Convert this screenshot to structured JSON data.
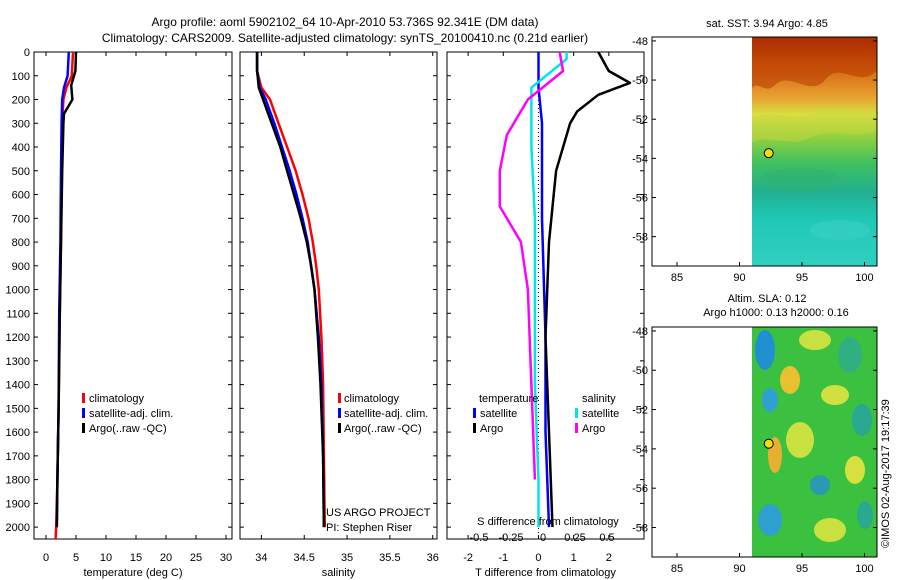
{
  "header": {
    "line1": "Argo profile: aoml 5902102_64 10-Apr-2010 53.736S 92.341E (DM data)",
    "line2": "Climatology: CARS2009. Satellite-adjusted climatology: synTS_20100410.nc (0.21d earlier)"
  },
  "credits": {
    "project": "US ARGO PROJECT",
    "pi": "PI: Stephen Riser",
    "timestamp": "©IMOS 02-Aug-2017 19:17:39"
  },
  "colors": {
    "climatology": "#ff0000",
    "satellite": "#0000ff",
    "argo": "#000000",
    "sat_salinity": "#00e5e5",
    "argo_salinity": "#ff00ff"
  },
  "chart_data": [
    {
      "type": "line",
      "id": "temperature",
      "xlabel": "temperature (deg C)",
      "xlim": [
        -2,
        31
      ],
      "ylim": [
        0,
        2050
      ],
      "xticks": [
        0,
        5,
        10,
        15,
        20,
        25,
        30
      ],
      "depth_ticks": [
        0,
        100,
        200,
        300,
        400,
        500,
        600,
        700,
        800,
        900,
        1000,
        1100,
        1200,
        1300,
        1400,
        1500,
        1600,
        1700,
        1800,
        1900,
        2000
      ],
      "legend": [
        "climatology",
        "satellite-adj. clim.",
        "Argo(..raw -QC)"
      ],
      "series": [
        {
          "name": "climatology",
          "color": "#ff0000",
          "points": [
            [
              4.5,
              0
            ],
            [
              4.3,
              100
            ],
            [
              3.4,
              150
            ],
            [
              2.9,
              200
            ],
            [
              2.7,
              300
            ],
            [
              2.6,
              500
            ],
            [
              2.5,
              800
            ],
            [
              2.3,
              1100
            ],
            [
              2.1,
              1500
            ],
            [
              1.9,
              1800
            ],
            [
              1.7,
              2000
            ],
            [
              1.6,
              2050
            ]
          ]
        },
        {
          "name": "satellite",
          "color": "#0000ff",
          "points": [
            [
              3.8,
              0
            ],
            [
              3.6,
              100
            ],
            [
              3.0,
              150
            ],
            [
              2.7,
              200
            ],
            [
              2.6,
              300
            ],
            [
              2.5,
              500
            ],
            [
              2.4,
              800
            ],
            [
              2.2,
              1100
            ],
            [
              2.1,
              1500
            ],
            [
              1.9,
              1800
            ],
            [
              1.8,
              2000
            ]
          ]
        },
        {
          "name": "argo",
          "color": "#000000",
          "points": [
            [
              5.0,
              0
            ],
            [
              4.9,
              80
            ],
            [
              4.2,
              140
            ],
            [
              4.4,
              200
            ],
            [
              3.0,
              260
            ],
            [
              2.9,
              300
            ],
            [
              2.7,
              500
            ],
            [
              2.5,
              800
            ],
            [
              2.3,
              1100
            ],
            [
              2.1,
              1500
            ],
            [
              1.9,
              1800
            ],
            [
              1.8,
              2000
            ]
          ]
        }
      ]
    },
    {
      "type": "line",
      "id": "salinity",
      "xlabel": "salinity",
      "xlim": [
        33.75,
        36.05
      ],
      "ylim": [
        0,
        2050
      ],
      "xticks": [
        34,
        34.5,
        35,
        35.5,
        36
      ],
      "legend": [
        "climatology",
        "satellite-adj. clim.",
        "Argo(..raw -QC)"
      ],
      "series": [
        {
          "name": "climatology",
          "color": "#ff0000",
          "points": [
            [
              33.95,
              0
            ],
            [
              33.95,
              80
            ],
            [
              34.0,
              150
            ],
            [
              34.1,
              200
            ],
            [
              34.2,
              300
            ],
            [
              34.3,
              400
            ],
            [
              34.4,
              500
            ],
            [
              34.48,
              600
            ],
            [
              34.55,
              700
            ],
            [
              34.6,
              800
            ],
            [
              34.64,
              900
            ],
            [
              34.67,
              1000
            ],
            [
              34.7,
              1200
            ],
            [
              34.72,
              1400
            ],
            [
              34.73,
              1700
            ],
            [
              34.74,
              2000
            ]
          ]
        },
        {
          "name": "satellite",
          "color": "#0000ff",
          "points": [
            [
              33.95,
              0
            ],
            [
              33.95,
              80
            ],
            [
              33.98,
              150
            ],
            [
              34.05,
              200
            ],
            [
              34.15,
              300
            ],
            [
              34.24,
              400
            ],
            [
              34.33,
              500
            ],
            [
              34.41,
              600
            ],
            [
              34.48,
              700
            ],
            [
              34.54,
              800
            ],
            [
              34.58,
              900
            ],
            [
              34.62,
              1000
            ],
            [
              34.67,
              1200
            ],
            [
              34.7,
              1400
            ],
            [
              34.72,
              1700
            ],
            [
              34.73,
              2000
            ]
          ]
        },
        {
          "name": "argo",
          "color": "#000000",
          "points": [
            [
              33.95,
              0
            ],
            [
              33.95,
              80
            ],
            [
              33.97,
              150
            ],
            [
              34.07,
              250
            ],
            [
              34.12,
              300
            ],
            [
              34.22,
              400
            ],
            [
              34.3,
              500
            ],
            [
              34.38,
              600
            ],
            [
              34.46,
              700
            ],
            [
              34.53,
              800
            ],
            [
              34.58,
              900
            ],
            [
              34.62,
              1000
            ],
            [
              34.66,
              1200
            ],
            [
              34.69,
              1400
            ],
            [
              34.72,
              1700
            ],
            [
              34.73,
              2000
            ]
          ]
        }
      ]
    },
    {
      "type": "line",
      "id": "difference",
      "xlabel": "T difference from climatology",
      "xlabel_top": "S difference from climatology",
      "xlim": [
        -2.6,
        3.0
      ],
      "ylim": [
        0,
        2050
      ],
      "xticks": [
        -2,
        -1,
        0,
        1,
        2
      ],
      "xticks_salinity": [
        -0.5,
        -0.25,
        0,
        0.25,
        0.5
      ],
      "legend_titles": [
        "temperature",
        "salinity"
      ],
      "legend": [
        "satellite",
        "Argo",
        "satellite",
        "Argo"
      ],
      "series": [
        {
          "name": "T satellite",
          "color": "#0000ff",
          "points": [
            [
              0,
              0
            ],
            [
              0,
              150
            ],
            [
              0.1,
              300
            ],
            [
              0.1,
              700
            ],
            [
              0.2,
              1200
            ],
            [
              0.2,
              1600
            ],
            [
              0.3,
              2000
            ]
          ]
        },
        {
          "name": "T Argo",
          "color": "#000000",
          "points": [
            [
              1.7,
              0
            ],
            [
              2.0,
              80
            ],
            [
              2.6,
              130
            ],
            [
              1.7,
              180
            ],
            [
              1.1,
              250
            ],
            [
              0.9,
              300
            ],
            [
              0.5,
              500
            ],
            [
              0.3,
              800
            ],
            [
              0.2,
              1200
            ],
            [
              0.3,
              1600
            ],
            [
              0.4,
              2000
            ]
          ]
        },
        {
          "name": "S satellite",
          "color": "#00e5e5",
          "points": [
            [
              0.8,
              0
            ],
            [
              0.8,
              30
            ],
            [
              -0.2,
              150
            ],
            [
              -0.2,
              400
            ],
            [
              -0.1,
              700
            ],
            [
              -0.1,
              1000
            ],
            [
              -0.1,
              1400
            ],
            [
              0,
              1800
            ],
            [
              0,
              2000
            ]
          ]
        },
        {
          "name": "S Argo",
          "color": "#ff00ff",
          "points": [
            [
              0.6,
              0
            ],
            [
              0.7,
              80
            ],
            [
              -0.3,
              200
            ],
            [
              -0.9,
              350
            ],
            [
              -1.1,
              500
            ],
            [
              -1.1,
              650
            ],
            [
              -0.5,
              800
            ],
            [
              -0.3,
              1000
            ],
            [
              -0.2,
              1400
            ],
            [
              -0.1,
              1800
            ]
          ]
        }
      ]
    },
    {
      "type": "heatmap",
      "id": "sst_map",
      "title": "sat. SST: 3.94 Argo: 4.85",
      "xlim": [
        83,
        101
      ],
      "ylim": [
        -59.5,
        -47.8
      ],
      "xticks": [
        85,
        90,
        95,
        100
      ],
      "yticks": [
        -48,
        -50,
        -52,
        -54,
        -56,
        -58
      ],
      "data_west_edge": 90,
      "argo_position": {
        "lon": 92.341,
        "lat": -53.736
      }
    },
    {
      "type": "heatmap",
      "id": "sla_map",
      "title": "Altim. SLA: 0.12",
      "subtitle": "Argo h1000: 0.13 h2000: 0.16",
      "xlim": [
        83,
        101
      ],
      "ylim": [
        -59.5,
        -47.8
      ],
      "xticks": [
        85,
        90,
        95,
        100
      ],
      "yticks": [
        -48,
        -50,
        -52,
        -54,
        -56,
        -58
      ],
      "data_west_edge": 90,
      "argo_position": {
        "lon": 92.341,
        "lat": -53.736
      }
    }
  ]
}
